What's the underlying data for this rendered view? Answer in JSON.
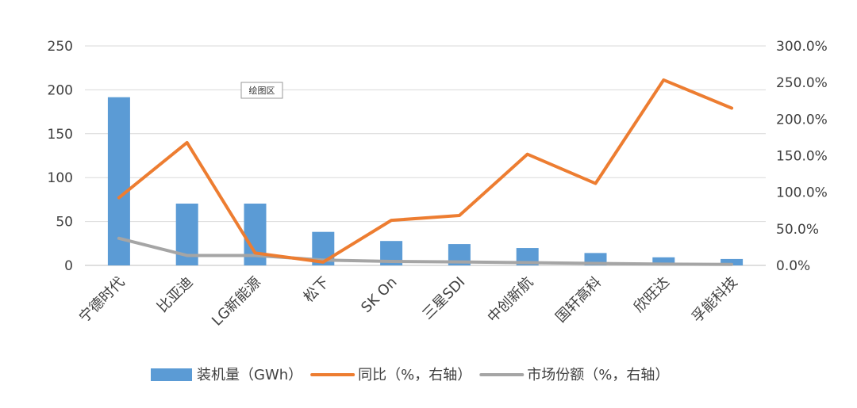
{
  "chart_data": {
    "type": "bar",
    "categories": [
      "宁德时代",
      "比亚迪",
      "LG新能源",
      "松下",
      "SK On",
      "三星SDI",
      "中创新航",
      "国轩高科",
      "欣旺达",
      "孚能科技"
    ],
    "series": [
      {
        "name": "装机量（GWh）",
        "type": "bar",
        "axis": "left",
        "color": "#5B9BD5",
        "values": [
          191.6,
          70.4,
          70.4,
          38.2,
          27.8,
          24.3,
          19.8,
          14.1,
          9.2,
          7.3
        ]
      },
      {
        "name": "同比（%，右轴）",
        "type": "line",
        "axis": "right",
        "color": "#ED7D31",
        "values": [
          92.5,
          167.9,
          17.0,
          4.5,
          61.6,
          68.2,
          152.0,
          112.0,
          253.5,
          215.0
        ]
      },
      {
        "name": "市场份额（%，右轴）",
        "type": "line",
        "axis": "right",
        "color": "#A5A5A5",
        "values": [
          37.0,
          13.6,
          13.6,
          7.3,
          5.4,
          4.7,
          3.8,
          2.7,
          1.8,
          1.4
        ]
      }
    ],
    "y_left": {
      "min": 0,
      "max": 250,
      "ticks": [
        "0",
        "50",
        "100",
        "150",
        "200",
        "250"
      ]
    },
    "y_right": {
      "min": 0,
      "max": 300,
      "ticks": [
        "0.0%",
        "50.0%",
        "100.0%",
        "150.0%",
        "200.0%",
        "250.0%",
        "300.0%"
      ]
    },
    "grid": true,
    "legend_position": "bottom",
    "tooltip": "绘图区"
  }
}
